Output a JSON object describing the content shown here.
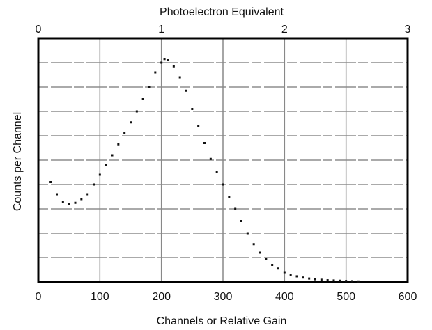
{
  "chart_data": {
    "type": "scatter",
    "title": "Photoelectron Equivalent",
    "x_label": "Channels or Relative Gain",
    "y_label": "Counts per Channel",
    "x": [
      20,
      30,
      40,
      50,
      60,
      70,
      80,
      90,
      100,
      110,
      120,
      130,
      140,
      150,
      160,
      170,
      180,
      190,
      200,
      205,
      210,
      220,
      230,
      240,
      250,
      260,
      270,
      280,
      290,
      300,
      310,
      320,
      330,
      340,
      350,
      360,
      370,
      380,
      390,
      400,
      410,
      420,
      430,
      440,
      450,
      460,
      470,
      480,
      490,
      500,
      510,
      520
    ],
    "y": [
      4.1,
      3.6,
      3.3,
      3.2,
      3.25,
      3.4,
      3.6,
      4.0,
      4.4,
      4.8,
      5.2,
      5.65,
      6.1,
      6.55,
      7.0,
      7.5,
      8.0,
      8.6,
      9.0,
      9.15,
      9.1,
      8.85,
      8.4,
      7.85,
      7.1,
      6.4,
      5.7,
      5.05,
      4.5,
      4.0,
      3.5,
      3.0,
      2.5,
      2.0,
      1.55,
      1.2,
      0.95,
      0.7,
      0.55,
      0.4,
      0.3,
      0.23,
      0.18,
      0.14,
      0.11,
      0.09,
      0.07,
      0.06,
      0.05,
      0.04,
      0.03,
      0.02
    ],
    "color": "#111111",
    "xlim": [
      0,
      600
    ],
    "xticks": [
      0,
      100,
      200,
      300,
      400,
      500,
      600
    ],
    "x2lim": [
      0,
      3
    ],
    "x2ticks": [
      0,
      1,
      2,
      3
    ],
    "ylim": [
      0,
      10
    ],
    "y_gridlines": [
      1,
      2,
      3,
      4,
      5,
      6,
      7,
      8,
      9
    ],
    "grid": true
  }
}
